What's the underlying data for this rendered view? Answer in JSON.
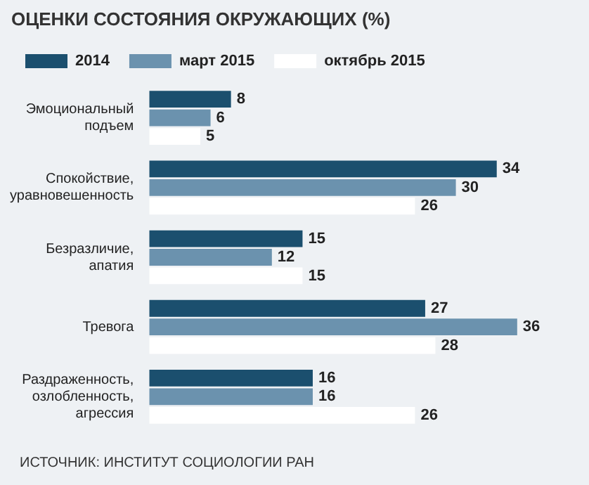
{
  "chart_data": {
    "type": "bar",
    "orientation": "horizontal",
    "title": "ОЦЕНКИ СОСТОЯНИЯ ОКРУЖАЮЩИХ (%)",
    "categories": [
      "Эмоциональный подъем",
      "Спокойствие, уравновешенность",
      "Безразличие, апатия",
      "Тревога",
      "Раздраженность, озлобленность, агрессия"
    ],
    "series": [
      {
        "name": "2014",
        "color": "#1b4f6e",
        "values": [
          8,
          34,
          15,
          27,
          16
        ]
      },
      {
        "name": "март 2015",
        "color": "#6b92ae",
        "values": [
          6,
          30,
          12,
          36,
          16
        ]
      },
      {
        "name": "октябрь 2015",
        "color": "#ffffff",
        "values": [
          5,
          26,
          15,
          28,
          26
        ]
      }
    ],
    "data_labels": true,
    "legend": "top",
    "annotations": [
      "ИСТОЧНИК: ИНСТИТУТ СОЦИОЛОГИИ РАН"
    ]
  }
}
